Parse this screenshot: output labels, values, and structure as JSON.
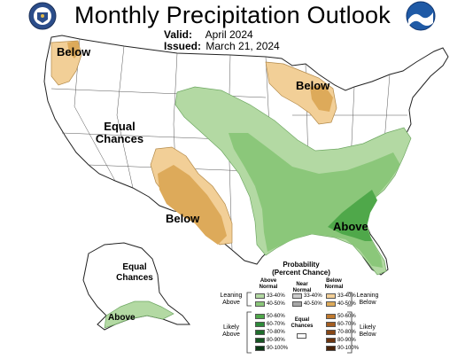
{
  "header": {
    "title": "Monthly Precipitation Outlook",
    "valid_label": "Valid:",
    "valid_value": "April 2024",
    "issued_label": "Issued:",
    "issued_value": "March 21, 2024"
  },
  "map_labels": {
    "below_nw": "Below",
    "below_gl": "Below",
    "equal_chances_w_1": "Equal",
    "equal_chances_w_2": "Chances",
    "below_sw": "Below",
    "above_se": "Above",
    "equal_chances_ak_1": "Equal",
    "equal_chances_ak_2": "Chances",
    "above_ak": "Above"
  },
  "legend": {
    "title_1": "Probability",
    "title_2": "(Percent Chance)",
    "col_above_1": "Above",
    "col_above_2": "Normal",
    "col_near_1": "Near",
    "col_near_2": "Normal",
    "col_below_1": "Below",
    "col_below_2": "Normal",
    "leaning_above_1": "Leaning",
    "leaning_above_2": "Above",
    "leaning_below_1": "Leaning",
    "leaning_below_2": "Below",
    "likely_above_1": "Likely",
    "likely_above_2": "Above",
    "likely_below_1": "Likely",
    "likely_below_2": "Below",
    "equal_chances_1": "Equal",
    "equal_chances_2": "Chances",
    "above_ranges": [
      "33-40%",
      "40-50%",
      "50-60%",
      "60-70%",
      "70-80%",
      "80-90%",
      "90-100%"
    ],
    "near_ranges": [
      "33-40%",
      "40-50%"
    ],
    "below_ranges": [
      "33-40%",
      "40-50%",
      "50-60%",
      "60-70%",
      "70-80%",
      "80-90%",
      "90-100%"
    ],
    "above_colors": [
      "#b3d9a3",
      "#8bc77a",
      "#4fa84a",
      "#2e8b3a",
      "#1f6d2c",
      "#165422",
      "#0c3a16"
    ],
    "near_colors": [
      "#cccccc",
      "#a6a6a6"
    ],
    "below_colors": [
      "#f2cf97",
      "#ddaa5a",
      "#c07a2e",
      "#a45d20",
      "#874716",
      "#6b3410",
      "#4a240a"
    ]
  },
  "logos": {
    "left": "doc-seal-icon",
    "right": "noaa-logo-icon"
  }
}
